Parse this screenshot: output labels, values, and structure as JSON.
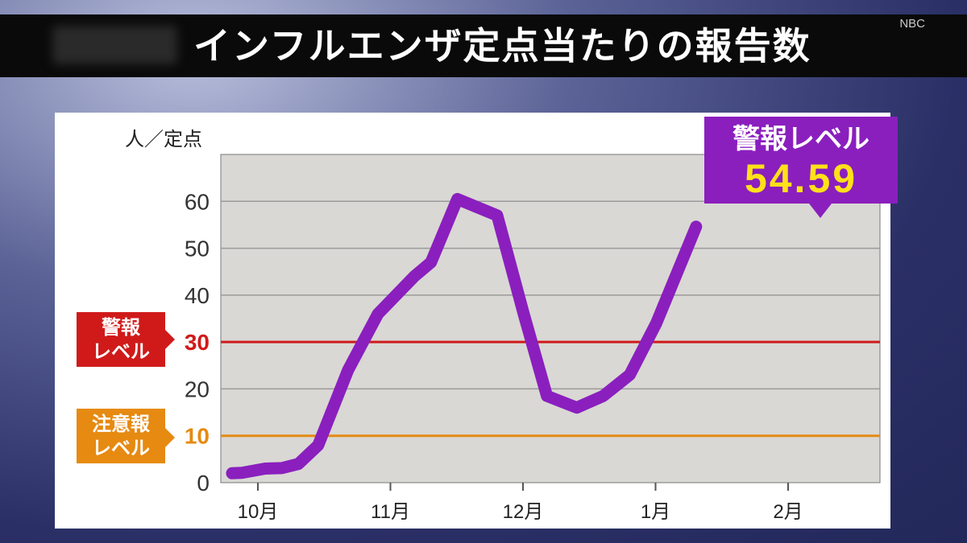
{
  "header": {
    "title": "インフルエンザ定点当たりの報告数",
    "logo": "NBC"
  },
  "chart_data": {
    "type": "line",
    "ylabel": "人／定点",
    "ylim": [
      0,
      70
    ],
    "yticks": [
      0,
      10,
      20,
      30,
      40,
      50,
      60
    ],
    "xticks": [
      "10月",
      "11月",
      "12月",
      "1月",
      "2月"
    ],
    "grid": true,
    "series": [
      {
        "color": "#8a1fbe",
        "points": [
          [
            0.0,
            2.0
          ],
          [
            0.15,
            2.1
          ],
          [
            0.5,
            3.0
          ],
          [
            0.75,
            3.1
          ],
          [
            1.0,
            4.0
          ],
          [
            1.3,
            8.0
          ],
          [
            1.75,
            24.0
          ],
          [
            2.2,
            36.0
          ],
          [
            2.75,
            44.0
          ],
          [
            3.0,
            47.0
          ],
          [
            3.4,
            60.5
          ],
          [
            4.0,
            57.0
          ],
          [
            4.4,
            36.0
          ],
          [
            4.75,
            18.5
          ],
          [
            5.2,
            16.0
          ],
          [
            5.6,
            18.5
          ],
          [
            6.0,
            23.0
          ],
          [
            6.4,
            34.0
          ],
          [
            7.0,
            54.59
          ]
        ]
      }
    ],
    "thresholds": [
      {
        "label": "警報レベル",
        "value": 30,
        "color": "#d01a1a"
      },
      {
        "label": "注意報レベル",
        "value": 10,
        "color": "#e68a12"
      }
    ],
    "annotation": {
      "label": "警報レベル",
      "value": "54.59",
      "label_color": "#ffffff",
      "value_color": "#ffe01a"
    }
  },
  "thresholds_text": {
    "warn_line1": "警報",
    "warn_line2": "レベル",
    "caution_line1": "注意報",
    "caution_line2": "レベル"
  }
}
